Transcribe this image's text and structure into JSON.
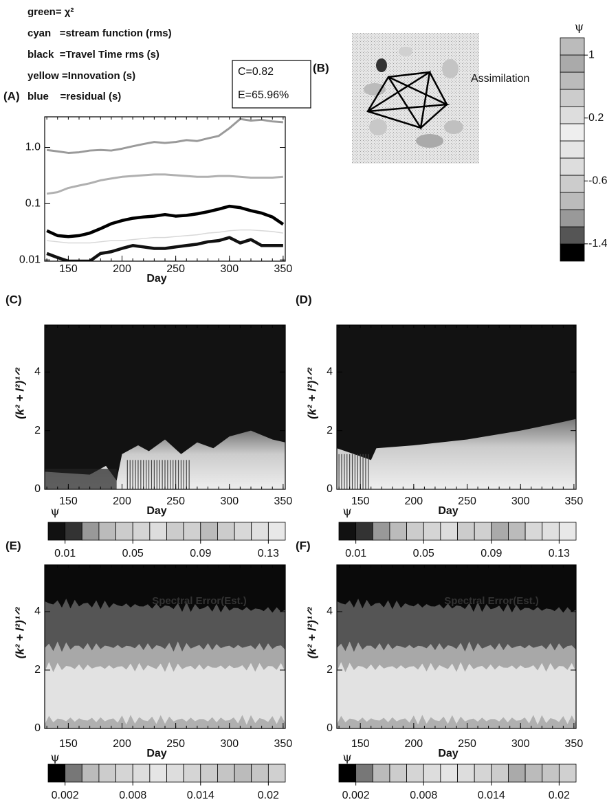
{
  "chart_data": [
    {
      "type": "line",
      "label": "(A)",
      "xlabel": "Day",
      "log_y": true,
      "x": [
        130,
        140,
        150,
        160,
        170,
        180,
        190,
        200,
        210,
        220,
        230,
        240,
        250,
        260,
        270,
        280,
        290,
        300,
        310,
        320,
        330,
        340,
        350
      ],
      "xlim": [
        128,
        352
      ],
      "xticks": [
        150,
        200,
        250,
        300,
        350
      ],
      "ylim": [
        0.0095,
        3.5
      ],
      "yticks": [
        0.01,
        0.1,
        {
          "value": 1,
          "label": "1.0"
        }
      ],
      "series": [
        {
          "name": "green= χ²",
          "color": "#9a9a9a",
          "width": 3,
          "values": [
            0.9,
            0.85,
            0.8,
            0.82,
            0.88,
            0.9,
            0.88,
            0.95,
            1.05,
            1.15,
            1.25,
            1.2,
            1.25,
            1.35,
            1.3,
            1.45,
            1.6,
            2.2,
            3.2,
            3.0,
            3.1,
            2.9,
            2.8
          ]
        },
        {
          "name": "cyan   =stream function (rms)",
          "color": "#b0b0b0",
          "width": 3,
          "values": [
            0.15,
            0.16,
            0.19,
            0.21,
            0.23,
            0.26,
            0.28,
            0.3,
            0.31,
            0.32,
            0.33,
            0.33,
            0.32,
            0.31,
            0.3,
            0.3,
            0.31,
            0.31,
            0.3,
            0.29,
            0.29,
            0.29,
            0.3
          ]
        },
        {
          "name": "black  =Travel Time rms (s)",
          "color": "#000000",
          "width": 4.5,
          "values": [
            0.033,
            0.027,
            0.026,
            0.027,
            0.03,
            0.036,
            0.044,
            0.05,
            0.055,
            0.058,
            0.06,
            0.064,
            0.06,
            0.062,
            0.066,
            0.072,
            0.08,
            0.09,
            0.085,
            0.075,
            0.068,
            0.058,
            0.043
          ]
        },
        {
          "name": "yellow =Innovation (s)",
          "color": "#d8d8d8",
          "width": 1.5,
          "values": [
            0.022,
            0.021,
            0.02,
            0.02,
            0.02,
            0.021,
            0.022,
            0.022,
            0.023,
            0.024,
            0.025,
            0.025,
            0.026,
            0.027,
            0.028,
            0.03,
            0.031,
            0.033,
            0.034,
            0.034,
            0.033,
            0.032,
            0.03
          ]
        },
        {
          "name": "blue    =residual (s)",
          "color": "#111111",
          "width": 4.5,
          "values": [
            0.013,
            0.011,
            0.0095,
            0.0095,
            0.0095,
            0.013,
            0.014,
            0.016,
            0.018,
            0.017,
            0.016,
            0.016,
            0.017,
            0.018,
            0.019,
            0.021,
            0.022,
            0.025,
            0.02,
            0.023,
            0.018,
            0.018,
            0.018
          ]
        }
      ],
      "annotations": [
        "C=0.82",
        "E=65.96%"
      ]
    },
    {
      "type": "map",
      "label": "(B)",
      "annotation": "Assimilation",
      "colorbar": {
        "label": "ψ",
        "lim": [
          -1.62,
          1.22
        ],
        "ticks": [
          1,
          0.2,
          -0.6,
          -1.4
        ],
        "colors": [
          "#000",
          "#555",
          "#999",
          "#bbb",
          "#ccc",
          "#ddd",
          "#e5e5e5",
          "#eee",
          "#ddd",
          "#ccc",
          "#bbb",
          "#aaa",
          "#bbb"
        ]
      }
    },
    {
      "type": "heatmap",
      "label": "(C)",
      "xlabel": "Day",
      "ylabel": "(k² + l²)¹ᐟ²",
      "xlim": [
        128,
        352
      ],
      "xticks": [
        150,
        200,
        250,
        300,
        350
      ],
      "ylim": [
        0,
        5.6
      ],
      "yticks": [
        0,
        2,
        4
      ],
      "colorbar": {
        "label": "ψ",
        "lim": [
          0,
          0.14
        ],
        "ticks": [
          0.01,
          0.05,
          0.09,
          0.13
        ],
        "colors": [
          "#111",
          "#333",
          "#999",
          "#bbb",
          "#ccc",
          "#d5d5d5",
          "#ddd",
          "#ccc",
          "#d0d0d0",
          "#bbb",
          "#ccc",
          "#d8d8d8",
          "#e0e0e0",
          "#e8e8e8"
        ]
      }
    },
    {
      "type": "heatmap",
      "label": "(D)",
      "xlabel": "Day",
      "ylabel": "(k² + l²)¹ᐟ²",
      "xlim": [
        128,
        352
      ],
      "xticks": [
        150,
        200,
        250,
        300,
        350
      ],
      "ylim": [
        0,
        5.6
      ],
      "yticks": [
        0,
        2,
        4
      ],
      "colorbar": {
        "label": "ψ",
        "lim": [
          0,
          0.14
        ],
        "ticks": [
          0.01,
          0.05,
          0.09,
          0.13
        ],
        "colors": [
          "#111",
          "#333",
          "#999",
          "#bbb",
          "#ccc",
          "#d5d5d5",
          "#ddd",
          "#ccc",
          "#d0d0d0",
          "#aaa",
          "#bbb",
          "#d8d8d8",
          "#e0e0e0",
          "#e8e8e8"
        ]
      }
    },
    {
      "type": "heatmap",
      "label": "(E)",
      "xlabel": "Day",
      "ylabel": "(k² + l²)¹ᐟ²",
      "annotation": "Spectral Error(Est.)",
      "xlim": [
        128,
        352
      ],
      "xticks": [
        150,
        200,
        250,
        300,
        350
      ],
      "ylim": [
        0,
        5.6
      ],
      "yticks": [
        0,
        2,
        4
      ],
      "colorbar": {
        "label": "ψ",
        "lim": [
          0.0005,
          0.0215
        ],
        "ticks": [
          0.002,
          0.008,
          0.014,
          0.02
        ],
        "colors": [
          "#000",
          "#777",
          "#bbb",
          "#ccc",
          "#d5d5d5",
          "#ddd",
          "#e5e5e5",
          "#ddd",
          "#d5d5d5",
          "#ccc",
          "#c5c5c5",
          "#bbb",
          "#c5c5c5",
          "#d0d0d0"
        ]
      }
    },
    {
      "type": "heatmap",
      "label": "(F)",
      "xlabel": "Day",
      "ylabel": "(k² + l²)¹ᐟ²",
      "annotation": "Spectral Error(Est.)",
      "xlim": [
        128,
        352
      ],
      "xticks": [
        150,
        200,
        250,
        300,
        350
      ],
      "ylim": [
        0,
        5.6
      ],
      "yticks": [
        0,
        2,
        4
      ],
      "colorbar": {
        "label": "ψ",
        "lim": [
          0.0005,
          0.0215
        ],
        "ticks": [
          0.002,
          0.008,
          0.014,
          0.02
        ],
        "colors": [
          "#000",
          "#777",
          "#bbb",
          "#ccc",
          "#d5d5d5",
          "#ddd",
          "#e5e5e5",
          "#ddd",
          "#d5d5d5",
          "#ccc",
          "#aaa",
          "#bbb",
          "#c5c5c5",
          "#d0d0d0"
        ]
      }
    }
  ]
}
